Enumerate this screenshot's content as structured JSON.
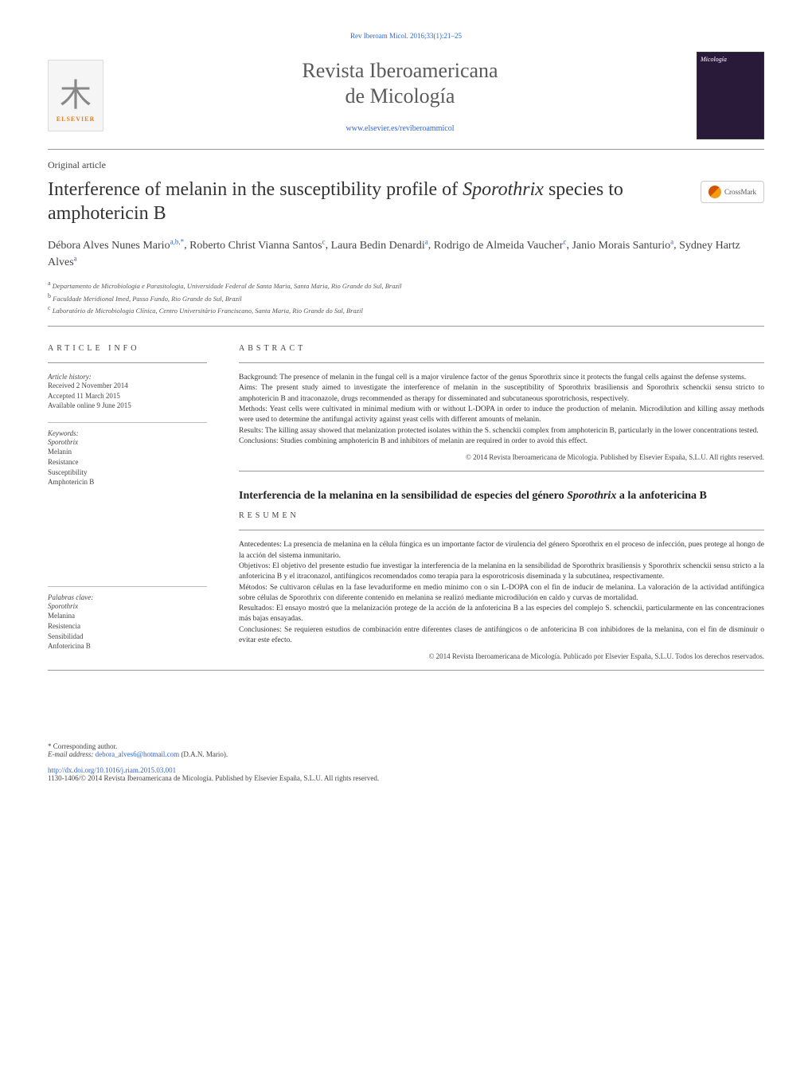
{
  "doi_top": "Rev Iberoam Micol. 2016;33(1):21–25",
  "journal": {
    "title_line1": "Revista Iberoamericana",
    "title_line2": "de Micología",
    "url": "www.elsevier.es/reviberoammicol",
    "elsevier": "ELSEVIER",
    "cover_label": "Micología"
  },
  "article_type": "Original article",
  "title_pre": "Interference of melanin in the susceptibility profile of ",
  "title_italic": "Sporothrix",
  "title_post": " species to amphotericin B",
  "crossmark": "CrossMark",
  "authors_html": "Débora Alves Nunes Mario",
  "authors": [
    {
      "name": "Débora Alves Nunes Mario",
      "aff": "a,b,*"
    },
    {
      "name": "Roberto Christ Vianna Santos",
      "aff": "c"
    },
    {
      "name": "Laura Bedin Denardi",
      "aff": "a"
    },
    {
      "name": "Rodrigo de Almeida Vaucher",
      "aff": "c"
    },
    {
      "name": "Janio Morais Santurio",
      "aff": "a"
    },
    {
      "name": "Sydney Hartz Alves",
      "aff": "a"
    }
  ],
  "affiliations": [
    {
      "sup": "a",
      "text": "Departamento de Microbiologia e Parasitologia, Universidade Federal de Santa Maria, Santa Maria, Rio Grande do Sul, Brazil"
    },
    {
      "sup": "b",
      "text": "Faculdade Meridional Imed, Passo Fundo, Rio Grande do Sul, Brazil"
    },
    {
      "sup": "c",
      "text": "Laboratório de Microbiologia Clínica, Centro Universitário Franciscano, Santa Maria, Rio Grande do Sul, Brazil"
    }
  ],
  "info_label": "ARTICLE INFO",
  "abstract_label": "ABSTRACT",
  "resumen_label": "RESUMEN",
  "history": {
    "label": "Article history:",
    "received": "Received 2 November 2014",
    "accepted": "Accepted 11 March 2015",
    "online": "Available online 9 June 2015"
  },
  "keywords_en": {
    "label": "Keywords:",
    "items": [
      "Sporothrix",
      "Melanin",
      "Resistance",
      "Susceptibility",
      "Amphotericin B"
    ]
  },
  "keywords_es": {
    "label": "Palabras clave:",
    "items": [
      "Sporothrix",
      "Melanina",
      "Resistencia",
      "Sensibilidad",
      "Anfotericina B"
    ]
  },
  "abstract_en": {
    "background": "Background:  The presence of melanin in the fungal cell is a major virulence factor of the genus Sporothrix since it protects the fungal cells against the defense systems.",
    "aims": "Aims:  The present study aimed to investigate the interference of melanin in the susceptibility of Sporothrix brasiliensis and Sporothrix schenckii sensu stricto to amphotericin B and itraconazole, drugs recommended as therapy for disseminated and subcutaneous sporotrichosis, respectively.",
    "methods": "Methods:  Yeast cells were cultivated in minimal medium with or without L-DOPA in order to induce the production of melanin. Microdilution and killing assay methods were used to determine the antifungal activity against yeast cells with different amounts of melanin.",
    "results": "Results:  The killing assay showed that melanization protected isolates within the S. schenckii complex from amphotericin B, particularly in the lower concentrations tested.",
    "conclusions": "Conclusions:  Studies combining amphotericin B and inhibitors of melanin are required in order to avoid this effect.",
    "copyright": "© 2014 Revista Iberoamericana de Micología. Published by Elsevier España, S.L.U. All rights reserved."
  },
  "es_title_pre": "Interferencia de la melanina en la sensibilidad de especies del género ",
  "es_title_italic": "Sporothrix",
  "es_title_post": " a la anfotericina B",
  "abstract_es": {
    "antecedentes": "Antecedentes:  La presencia de melanina en la célula fúngica es un importante factor de virulencia del género Sporothrix en el proceso de infección, pues protege al hongo de la acción del sistema inmunitario.",
    "objetivos": "Objetivos:  El objetivo del presente estudio fue investigar la interferencia de la melanina en la sensibilidad de Sporothrix brasiliensis y Sporothrix schenckii sensu stricto a la anfotericina B y el itraconazol, antifúngicos recomendados como terapia para la esporotricosis diseminada y la subcutánea, respectivamente.",
    "metodos": "Métodos:  Se cultivaron células en la fase levaduriforme en medio mínimo con o sin L-DOPA con el fin de inducir de melanina. La valoración de la actividad antifúngica sobre células de Sporothrix con diferente contenido en melanina se realizó mediante microdilución en caldo y curvas de mortalidad.",
    "resultados": "Resultados:  El ensayo mostró que la melanización protege de la acción de la anfotericina B a las especies del complejo S. schenckii, particularmente en las concentraciones más bajas ensayadas.",
    "conclusiones": "Conclusiones:  Se requieren estudios de combinación entre diferentes clases de antifúngicos o de anfotericina B con inhibidores de la melanina, con el fin de disminuir o evitar este efecto.",
    "copyright": "© 2014 Revista Iberoamericana de Micología. Publicado por Elsevier España, S.L.U. Todos los derechos reservados."
  },
  "corresponding": {
    "label": "* Corresponding author.",
    "email_label": "E-mail address: ",
    "email": "debora_alves6@hotmail.com",
    "name": " (D.A.N. Mario)."
  },
  "footer": {
    "doi": "http://dx.doi.org/10.1016/j.riam.2015.03.001",
    "copy": "1130-1406/© 2014 Revista Iberoamericana de Micología. Published by Elsevier España, S.L.U. All rights reserved."
  }
}
